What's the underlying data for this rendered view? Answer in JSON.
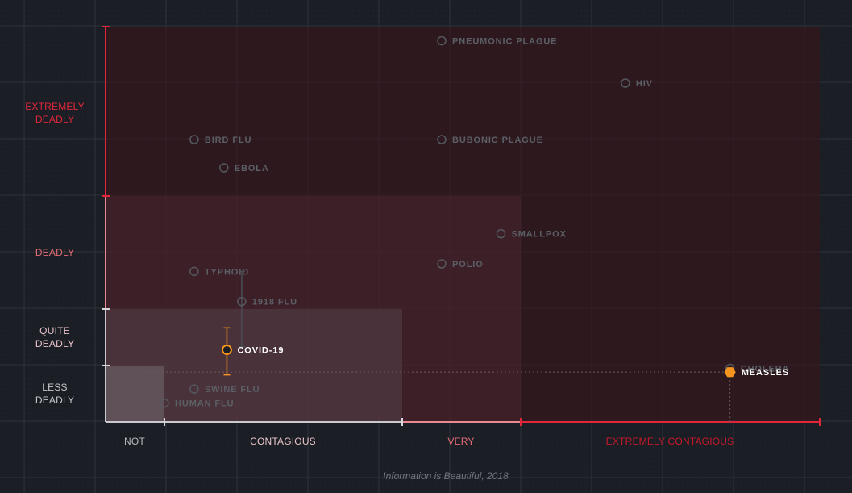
{
  "chart_data": {
    "type": "scatter",
    "source": "Information is Beautiful, 2018",
    "x_categories": [
      "NOT",
      "CONTAGIOUS",
      "VERY",
      "EXTREMELY CONTAGIOUS"
    ],
    "y_categories": [
      {
        "lines": [
          "LESS",
          "DEADLY"
        ]
      },
      {
        "lines": [
          "QUITE",
          "DEADLY"
        ]
      },
      {
        "lines": [
          "DEADLY"
        ]
      },
      {
        "lines": [
          "EXTREMELY",
          "DEADLY"
        ]
      }
    ],
    "x_label_color_active": "#c8182a",
    "colors": {
      "background": "#1b1f25",
      "grid": "#2d333b",
      "axis": "#e1263b",
      "highlight": "#f5941e",
      "label_muted": "#5c5f66",
      "label_bright": "#ffffff"
    },
    "points": [
      {
        "name": "PNEUMONIC PLAGUE",
        "r0": 6,
        "cfr": 95,
        "style": "muted"
      },
      {
        "name": "HIV",
        "r0": 11.5,
        "cfr": 80,
        "style": "muted"
      },
      {
        "name": "BIRD FLU",
        "r0": 1.5,
        "cfr": 60,
        "style": "muted"
      },
      {
        "name": "BUBONIC PLAGUE",
        "r0": 6,
        "cfr": 60,
        "style": "muted"
      },
      {
        "name": "EBOLA",
        "r0": 2.0,
        "cfr": 50,
        "style": "muted"
      },
      {
        "name": "SMALLPOX",
        "r0": 7.5,
        "cfr": 30,
        "style": "muted"
      },
      {
        "name": "POLIO",
        "r0": 6,
        "cfr": 22,
        "style": "muted"
      },
      {
        "name": "TYPHOID",
        "r0": 1.5,
        "cfr": 20,
        "style": "muted"
      },
      {
        "name": "1918 FLU",
        "r0": 2.3,
        "cfr": 12,
        "style": "muted",
        "range": [
          20,
          4
        ]
      },
      {
        "name": "COVID-19",
        "r0": 2.05,
        "cfr": 3.5,
        "style": "active",
        "range": [
          7,
          0
        ]
      },
      {
        "name": "CHOLERA",
        "r0": 15,
        "cfr": 0.7,
        "style": "muted"
      },
      {
        "name": "MEASLES",
        "r0": 15,
        "cfr": 0.3,
        "style": "highlight"
      },
      {
        "name": "SWINE FLU",
        "r0": 1.5,
        "cfr": -1.5,
        "style": "muted"
      },
      {
        "name": "HUMAN FLU",
        "r0": 1.0,
        "cfr": -3,
        "style": "muted"
      }
    ]
  }
}
